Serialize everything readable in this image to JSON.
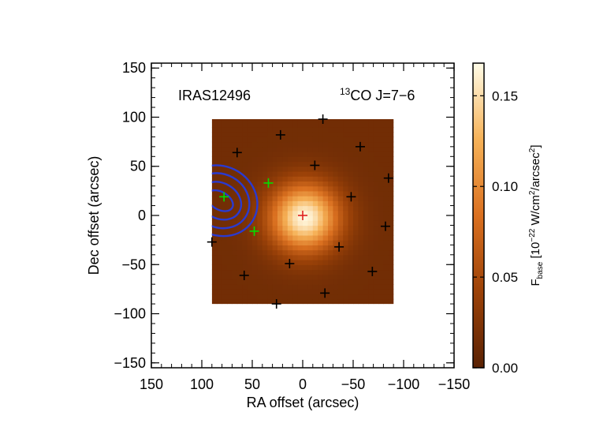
{
  "chart_data": {
    "type": "heatmap",
    "source_label": "IRAS12496",
    "line_label": {
      "isotope": "13",
      "molecule": "CO J=7−6"
    },
    "xlabel": "RA offset (arcsec)",
    "ylabel": "Dec offset (arcsec)",
    "xlim": [
      150,
      -150
    ],
    "ylim": [
      -155,
      155
    ],
    "xticks": [
      {
        "value": 150,
        "label": "150"
      },
      {
        "value": 100,
        "label": "100"
      },
      {
        "value": 50,
        "label": "50"
      },
      {
        "value": 0,
        "label": "0"
      },
      {
        "value": -50,
        "label": "−50"
      },
      {
        "value": -100,
        "label": "−100"
      },
      {
        "value": -150,
        "label": "−150"
      }
    ],
    "yticks": [
      {
        "value": 150,
        "label": "150"
      },
      {
        "value": 100,
        "label": "100"
      },
      {
        "value": 50,
        "label": "50"
      },
      {
        "value": 0,
        "label": "0"
      },
      {
        "value": -50,
        "label": "−50"
      },
      {
        "value": -100,
        "label": "−100"
      },
      {
        "value": -150,
        "label": "−150"
      }
    ],
    "map_extent": {
      "x": [
        90,
        -90
      ],
      "y": [
        -90,
        98
      ]
    },
    "emission_peak": {
      "x": -2,
      "y": -2,
      "peak": 0.165,
      "sigma": 24,
      "background": 0.015
    },
    "colorbar": {
      "min": 0.0,
      "max": 0.168,
      "ticks": [
        {
          "value": 0.0,
          "label": "0.00"
        },
        {
          "value": 0.05,
          "label": "0.05"
        },
        {
          "value": 0.1,
          "label": "0.10"
        },
        {
          "value": 0.15,
          "label": "0.15"
        }
      ],
      "label": {
        "main": "F",
        "sub": "base",
        "open": " [10",
        "exp1": "−22",
        "mid": " W/cm",
        "exp2": "2",
        "mid2": "/arcsec",
        "exp3": "2",
        "close": "]"
      }
    },
    "markers": {
      "central": {
        "color": "#e02020",
        "points": [
          [
            0,
            0
          ]
        ]
      },
      "green": {
        "color": "#00e000",
        "points": [
          [
            78,
            19
          ],
          [
            34,
            33
          ],
          [
            48,
            -16
          ]
        ]
      },
      "black": {
        "color": "#000000",
        "points": [
          [
            -20,
            98
          ],
          [
            22,
            82
          ],
          [
            65,
            64
          ],
          [
            -57,
            70
          ],
          [
            -12,
            51
          ],
          [
            -85,
            38
          ],
          [
            -48,
            19
          ],
          [
            -82,
            -11
          ],
          [
            90,
            -27
          ],
          [
            -36,
            -32
          ],
          [
            13,
            -49
          ],
          [
            -69,
            -57
          ],
          [
            58,
            -61
          ],
          [
            -22,
            -79
          ],
          [
            26,
            -90
          ]
        ]
      }
    },
    "contours": {
      "color": "#2a3ad0",
      "center": [
        82,
        15
      ],
      "levels": [
        {
          "a": 14,
          "b": 9
        },
        {
          "a": 22,
          "b": 18
        },
        {
          "a": 30,
          "b": 27
        },
        {
          "a": 38,
          "b": 35
        }
      ]
    },
    "colors": {
      "axis": "#000000"
    }
  }
}
